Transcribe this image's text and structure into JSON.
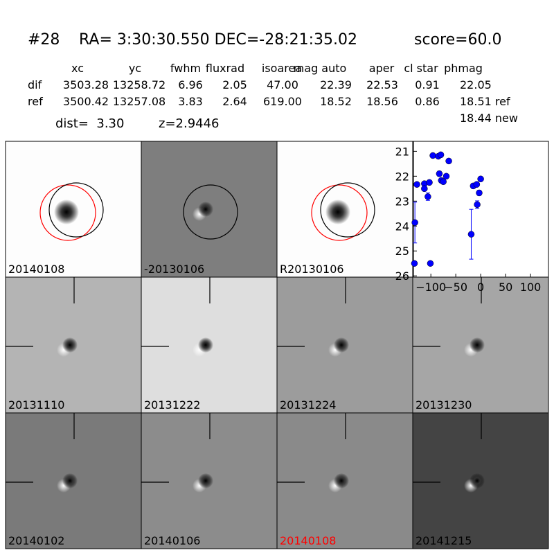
{
  "header": {
    "id": "#28",
    "coords": "RA= 3:30:30.550 DEC=-28:21:35.02",
    "score": "score=60.0"
  },
  "table": {
    "columns": [
      "xc",
      "yc",
      "fwhm",
      "fluxrad",
      "isoarea",
      "mag auto",
      "aper",
      "cl star",
      "phmag"
    ],
    "rows": [
      [
        "dif",
        "3503.28",
        "13258.72",
        "6.96",
        "2.05",
        "47.00",
        "22.39",
        "22.53",
        "0.91",
        "22.05"
      ],
      [
        "ref",
        "3500.42",
        "13257.08",
        "3.83",
        "2.64",
        "619.00",
        "18.52",
        "18.56",
        "0.86",
        "18.51 ref"
      ]
    ],
    "extra": "18.44 new"
  },
  "info": {
    "dist": "dist=  3.30",
    "z": "z=2.9446"
  },
  "stamps": [
    {
      "label": "20140108"
    },
    {
      "label": "-20130106"
    },
    {
      "label": "R20130106"
    },
    {
      "label": "20131110"
    },
    {
      "label": "20131222"
    },
    {
      "label": "20131224"
    },
    {
      "label": "20131230"
    },
    {
      "label": "20140102"
    },
    {
      "label": "20140106"
    },
    {
      "label": "20140108",
      "label_color": "red"
    },
    {
      "label": "20141215"
    }
  ],
  "chart_data": {
    "type": "scatter",
    "color": "blue",
    "x": [
      -133,
      -132,
      -128,
      -113,
      -113,
      -106,
      -103,
      -101,
      -96,
      -85,
      -83,
      -80,
      -79,
      -75,
      -69,
      -64,
      -19,
      -15,
      -8,
      -7,
      -3,
      0
    ],
    "values": [
      25.5,
      23.86,
      22.33,
      22.3,
      22.5,
      22.82,
      22.25,
      25.5,
      21.17,
      21.2,
      21.9,
      21.14,
      22.17,
      22.22,
      22.0,
      21.39,
      24.33,
      22.39,
      22.33,
      23.14,
      22.67,
      22.11
    ],
    "errors": [
      0.05,
      0.82,
      0.08,
      0.06,
      0.08,
      0.15,
      0.08,
      0.08,
      0.05,
      0.05,
      0.1,
      0.05,
      0.08,
      0.08,
      0.08,
      0.05,
      1.0,
      0.1,
      0.08,
      0.15,
      0.1,
      0.08
    ],
    "xlim": [
      -135,
      136
    ],
    "ylim": [
      26.05,
      20.6
    ],
    "xticks": [
      -100,
      -50,
      0,
      50,
      100
    ],
    "yticks": [
      21,
      22,
      23,
      24,
      25,
      26
    ]
  }
}
